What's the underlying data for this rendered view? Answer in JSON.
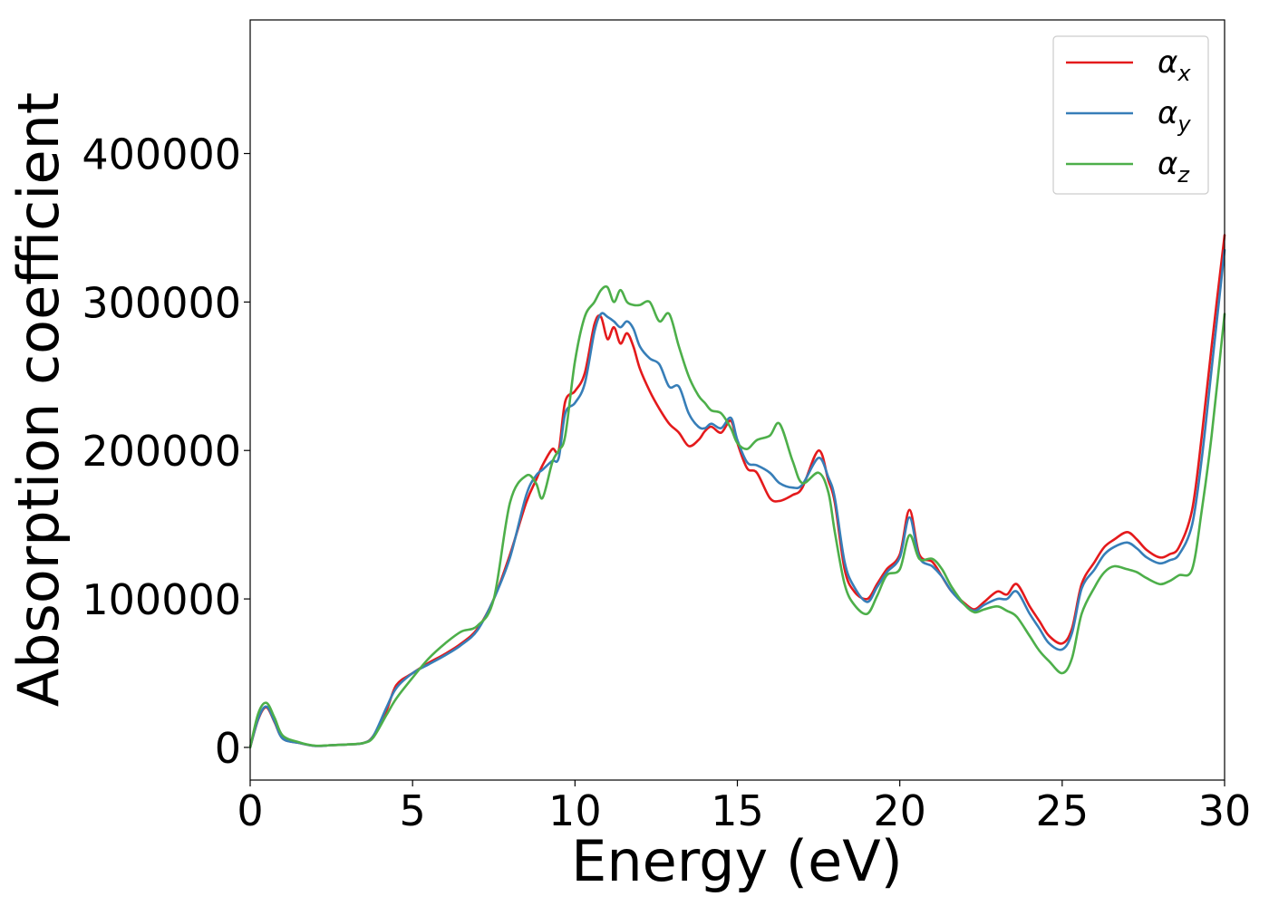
{
  "chart_data": {
    "type": "line",
    "title": "",
    "xlabel": "Energy (eV)",
    "ylabel": "Absorption coefficient",
    "xlim": [
      0,
      30
    ],
    "ylim": [
      -22000,
      490000
    ],
    "xticks": [
      0,
      5,
      10,
      15,
      20,
      25,
      30
    ],
    "xtick_labels": [
      "0",
      "5",
      "10",
      "15",
      "20",
      "25",
      "30"
    ],
    "yticks": [
      0,
      100000,
      200000,
      300000,
      400000
    ],
    "ytick_labels": [
      "0",
      "100000",
      "200000",
      "300000",
      "400000"
    ],
    "grid": false,
    "legend_position": "top-right",
    "series": [
      {
        "name": "αx",
        "symbol": "α",
        "subscript": "x",
        "color": "#e41a1c",
        "x": [
          0,
          0.25,
          0.5,
          0.75,
          1.0,
          1.5,
          2.0,
          2.5,
          3.0,
          3.5,
          3.8,
          4.2,
          4.5,
          5.0,
          5.5,
          6.0,
          6.5,
          7.0,
          7.5,
          8.0,
          8.5,
          8.8,
          9.0,
          9.3,
          9.5,
          9.7,
          10.0,
          10.3,
          10.6,
          10.8,
          11.0,
          11.2,
          11.4,
          11.6,
          11.8,
          12.0,
          12.3,
          12.6,
          12.9,
          13.2,
          13.5,
          13.8,
          14.0,
          14.2,
          14.5,
          14.8,
          15.0,
          15.3,
          15.6,
          16.0,
          16.3,
          16.7,
          17.0,
          17.5,
          17.8,
          18.0,
          18.3,
          18.6,
          19.0,
          19.3,
          19.6,
          20.0,
          20.3,
          20.6,
          21.0,
          21.3,
          21.6,
          22.0,
          22.3,
          22.6,
          23.0,
          23.3,
          23.6,
          24.0,
          24.3,
          24.6,
          25.0,
          25.3,
          25.6,
          26.0,
          26.3,
          26.6,
          27.0,
          27.3,
          27.6,
          28.0,
          28.3,
          28.6,
          29.0,
          29.3,
          29.6,
          30.0
        ],
        "y": [
          0,
          19000,
          27000,
          17000,
          6000,
          3000,
          1000,
          1500,
          2000,
          3000,
          8000,
          25000,
          42000,
          50000,
          57000,
          63000,
          70000,
          80000,
          100000,
          130000,
          165000,
          180000,
          190000,
          201000,
          200000,
          233000,
          240000,
          252000,
          285000,
          290000,
          275000,
          283000,
          272000,
          279000,
          270000,
          255000,
          240000,
          228000,
          218000,
          212000,
          203000,
          207000,
          213000,
          216000,
          212000,
          220000,
          205000,
          188000,
          185000,
          168000,
          166000,
          170000,
          175000,
          200000,
          180000,
          165000,
          120000,
          105000,
          100000,
          110000,
          120000,
          130000,
          160000,
          130000,
          125000,
          115000,
          105000,
          97000,
          93000,
          98000,
          105000,
          103000,
          110000,
          95000,
          85000,
          75000,
          70000,
          80000,
          110000,
          125000,
          135000,
          140000,
          145000,
          140000,
          133000,
          128000,
          130000,
          135000,
          160000,
          210000,
          270000,
          345000
        ]
      },
      {
        "name": "αy",
        "symbol": "α",
        "subscript": "y",
        "color": "#377eb8",
        "x": [
          0,
          0.25,
          0.5,
          0.75,
          1.0,
          1.5,
          2.0,
          2.5,
          3.0,
          3.5,
          3.8,
          4.2,
          4.5,
          5.0,
          5.5,
          6.0,
          6.5,
          7.0,
          7.5,
          8.0,
          8.5,
          8.8,
          9.0,
          9.3,
          9.5,
          9.7,
          10.0,
          10.3,
          10.6,
          10.8,
          11.0,
          11.2,
          11.4,
          11.6,
          11.8,
          12.0,
          12.3,
          12.6,
          12.9,
          13.2,
          13.5,
          13.8,
          14.0,
          14.2,
          14.5,
          14.8,
          15.0,
          15.3,
          15.6,
          16.0,
          16.3,
          16.7,
          17.0,
          17.5,
          17.8,
          18.0,
          18.3,
          18.6,
          19.0,
          19.3,
          19.6,
          20.0,
          20.3,
          20.6,
          21.0,
          21.3,
          21.6,
          22.0,
          22.3,
          22.6,
          23.0,
          23.3,
          23.6,
          24.0,
          24.3,
          24.6,
          25.0,
          25.3,
          25.6,
          26.0,
          26.3,
          26.6,
          27.0,
          27.3,
          27.6,
          28.0,
          28.3,
          28.6,
          29.0,
          29.3,
          29.6,
          30.0
        ],
        "y": [
          0,
          19500,
          27500,
          17500,
          6000,
          3000,
          1000,
          1500,
          2000,
          3000,
          8000,
          27000,
          40000,
          50000,
          56000,
          62000,
          69000,
          79000,
          100000,
          128000,
          170000,
          183000,
          187000,
          193000,
          195000,
          225000,
          232000,
          245000,
          280000,
          292000,
          290000,
          287000,
          283000,
          287000,
          282000,
          270000,
          262000,
          258000,
          243000,
          243000,
          225000,
          216000,
          215000,
          218000,
          215000,
          222000,
          207000,
          192000,
          190000,
          185000,
          178000,
          175000,
          177000,
          195000,
          182000,
          168000,
          125000,
          108000,
          98000,
          108000,
          118000,
          128000,
          155000,
          128000,
          122000,
          115000,
          105000,
          96000,
          92000,
          96000,
          100000,
          100000,
          105000,
          90000,
          80000,
          70000,
          66000,
          77000,
          107000,
          120000,
          130000,
          135000,
          138000,
          134000,
          128000,
          124000,
          126000,
          130000,
          150000,
          195000,
          255000,
          335000
        ]
      },
      {
        "name": "αz",
        "symbol": "α",
        "subscript": "z",
        "color": "#4daf4a",
        "x": [
          0,
          0.25,
          0.5,
          0.75,
          1.0,
          1.5,
          2.0,
          2.5,
          3.0,
          3.5,
          3.8,
          4.2,
          4.5,
          5.0,
          5.5,
          6.0,
          6.5,
          7.0,
          7.5,
          8.0,
          8.5,
          8.8,
          9.0,
          9.3,
          9.5,
          9.7,
          10.0,
          10.3,
          10.6,
          10.8,
          11.0,
          11.2,
          11.4,
          11.6,
          11.8,
          12.0,
          12.3,
          12.6,
          12.9,
          13.2,
          13.5,
          13.8,
          14.0,
          14.2,
          14.5,
          14.8,
          15.0,
          15.3,
          15.6,
          16.0,
          16.3,
          16.7,
          17.0,
          17.5,
          17.8,
          18.0,
          18.3,
          18.6,
          19.0,
          19.3,
          19.6,
          20.0,
          20.3,
          20.6,
          21.0,
          21.3,
          21.6,
          22.0,
          22.3,
          22.6,
          23.0,
          23.3,
          23.6,
          24.0,
          24.3,
          24.6,
          25.0,
          25.3,
          25.6,
          26.0,
          26.3,
          26.6,
          27.0,
          27.3,
          27.6,
          28.0,
          28.3,
          28.6,
          29.0,
          29.3,
          29.6,
          30.0
        ],
        "y": [
          0,
          23000,
          30000,
          20000,
          8000,
          3500,
          1200,
          1500,
          2000,
          3000,
          7000,
          22000,
          33000,
          47000,
          60000,
          70000,
          78000,
          82000,
          100000,
          165000,
          183000,
          178000,
          168000,
          192000,
          200000,
          210000,
          260000,
          290000,
          300000,
          308000,
          310000,
          300000,
          308000,
          300000,
          298000,
          298000,
          300000,
          287000,
          292000,
          270000,
          250000,
          237000,
          232000,
          227000,
          225000,
          215000,
          205000,
          201000,
          207000,
          210000,
          218000,
          193000,
          178000,
          185000,
          172000,
          145000,
          110000,
          96000,
          90000,
          102000,
          116000,
          120000,
          143000,
          127000,
          127000,
          120000,
          108000,
          96000,
          91000,
          93000,
          95000,
          92000,
          88000,
          75000,
          65000,
          58000,
          50000,
          60000,
          90000,
          108000,
          118000,
          122000,
          120000,
          118000,
          114000,
          110000,
          112000,
          116000,
          120000,
          160000,
          210000,
          292000
        ]
      }
    ]
  }
}
